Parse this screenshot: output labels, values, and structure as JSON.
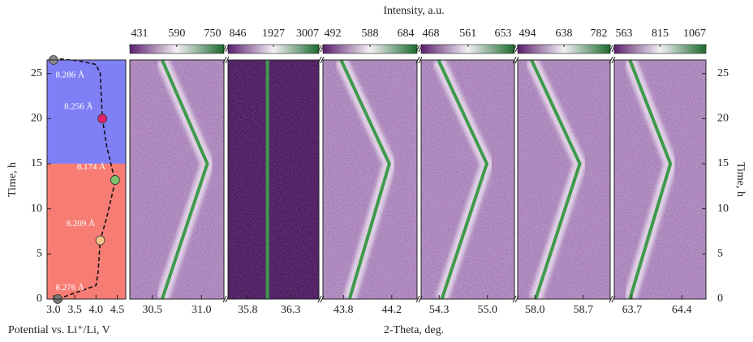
{
  "figure": {
    "colorbar_label": "Intensity, a.u.",
    "xlabel": "2-Theta, deg.",
    "y2label": "Time, h",
    "y2lim": [
      0,
      26.5
    ],
    "y2ticks": [
      0,
      5,
      10,
      15,
      20,
      25
    ]
  },
  "chart_data": [
    {
      "type": "line",
      "xlabel": "Potential vs. Li⁺/Li, V",
      "ylabel": "Time, h",
      "xlim": [
        2.85,
        4.7
      ],
      "xticks": [
        {
          "value": 3,
          "label": "3.0"
        },
        3.5,
        {
          "value": 4,
          "label": "4.0"
        },
        4.5
      ],
      "ylim": [
        0,
        26.5
      ],
      "yticks": [
        0,
        5,
        10,
        15,
        20,
        25
      ],
      "regions": [
        {
          "from": 15,
          "to": 26.5,
          "color": "#8080f6"
        },
        {
          "from": 0,
          "to": 15,
          "color": "#f77d74"
        }
      ],
      "x": [
        3.0,
        3.6,
        4.0,
        4.1,
        4.15,
        4.25,
        4.35,
        4.4,
        4.45,
        4.4,
        4.25,
        4.1,
        4.05,
        4.0,
        3.1
      ],
      "values": [
        26.7,
        26.4,
        26,
        25,
        20,
        17,
        15,
        14,
        13.2,
        12,
        9,
        6.5,
        3,
        1.5,
        0
      ],
      "markers": {
        "x": [
          3.0,
          4.15,
          4.45,
          4.1,
          3.1
        ],
        "values": [
          26.5,
          20,
          13.2,
          6.5,
          0
        ],
        "colors": [
          "#888888",
          "#e0206a",
          "#7cc46a",
          "#f5c28a",
          "#777777"
        ]
      },
      "annotations": [
        "8.286 Å",
        "8.256 Å",
        "8.174 Å",
        "8.209 Å",
        "8.276 Å"
      ]
    },
    {
      "type": "heatmap",
      "xlim": [
        30.27,
        31.23
      ],
      "xticks": [
        30.5,
        {
          "value": 31,
          "label": "31.0"
        }
      ],
      "ylim": [
        0,
        26.5
      ],
      "clim": [
        431,
        750
      ],
      "cticks": [
        431,
        590,
        750
      ],
      "peak_position": [
        30.6,
        31.06,
        30.6
      ],
      "peak_time": [
        0,
        15,
        26.5
      ]
    },
    {
      "type": "heatmap",
      "xlim": [
        35.57,
        36.63
      ],
      "xticks": [
        35.8,
        36.3
      ],
      "ylim": [
        0,
        26.5
      ],
      "clim": [
        846,
        3007
      ],
      "cticks": [
        846,
        1927,
        3007
      ],
      "peak_position": [
        36.03,
        36.03,
        36.03
      ],
      "peak_time": [
        0,
        15,
        26.5
      ],
      "dark": true
    },
    {
      "type": "heatmap",
      "xlim": [
        43.63,
        44.41
      ],
      "xticks": [
        43.8,
        44.2
      ],
      "ylim": [
        0,
        26.5
      ],
      "clim": [
        492,
        684
      ],
      "cticks": [
        492,
        588,
        684
      ],
      "peak_position": [
        43.85,
        44.18,
        43.78
      ],
      "peak_time": [
        0,
        15,
        26.5
      ]
    },
    {
      "type": "heatmap",
      "xlim": [
        54.04,
        55.39
      ],
      "xticks": [
        54.3,
        {
          "value": 55,
          "label": "55.0"
        }
      ],
      "ylim": [
        0,
        26.5
      ],
      "clim": [
        468,
        653
      ],
      "cticks": [
        468,
        561,
        653
      ],
      "peak_position": [
        54.34,
        54.99,
        54.29
      ],
      "peak_time": [
        0,
        15,
        26.5
      ]
    },
    {
      "type": "heatmap",
      "xlim": [
        57.75,
        59.09
      ],
      "xticks": [
        {
          "value": 58,
          "label": "58.0"
        },
        58.7
      ],
      "ylim": [
        0,
        26.5
      ],
      "clim": [
        494,
        782
      ],
      "cticks": [
        494,
        638,
        782
      ],
      "peak_position": [
        58.01,
        58.65,
        57.95
      ],
      "peak_time": [
        0,
        15,
        26.5
      ]
    },
    {
      "type": "heatmap",
      "xlim": [
        63.45,
        64.74
      ],
      "xticks": [
        63.7,
        64.4
      ],
      "ylim": [
        0,
        26.5
      ],
      "clim": [
        563,
        1067
      ],
      "cticks": [
        563,
        815,
        1067
      ],
      "peak_position": [
        63.67,
        64.24,
        63.67
      ],
      "peak_time": [
        0,
        15,
        26.5
      ]
    }
  ]
}
